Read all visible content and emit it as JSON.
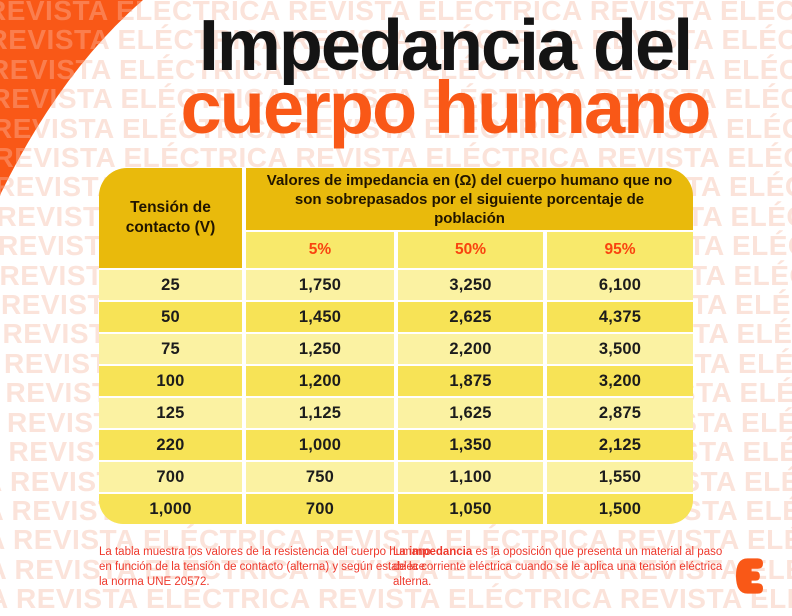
{
  "watermark": {
    "text": "REVISTA ELÉCTRICA",
    "rows": 21,
    "color_on_white": "#fbe3da",
    "color_on_orange": "#fa7e4e"
  },
  "brand": {
    "accent_orange": "#f95817",
    "footnote_red": "#ee392c",
    "gold": "#e9ba0c",
    "yellow_light": "#fbf2a2",
    "yellow_dark": "#f7e356",
    "logo_icon": "e-logo"
  },
  "title": {
    "line1": "Impedancia del",
    "line2": "cuerpo humano"
  },
  "table": {
    "corner_header": "Tensión de contacto (V)",
    "group_header": "Valores de impedancia en (Ω) del cuerpo humano que no son sobrepasados por el siguiente porcentaje de población",
    "percent_headers": [
      "5%",
      "50%",
      "95%"
    ]
  },
  "chart_data": {
    "type": "table",
    "title": "Impedancia del cuerpo humano",
    "columns": [
      "Tensión de contacto (V)",
      "5%",
      "50%",
      "95%"
    ],
    "rows": [
      [
        "25",
        "1,750",
        "3,250",
        "6,100"
      ],
      [
        "50",
        "1,450",
        "2,625",
        "4,375"
      ],
      [
        "75",
        "1,250",
        "2,200",
        "3,500"
      ],
      [
        "100",
        "1,200",
        "1,875",
        "3,200"
      ],
      [
        "125",
        "1,125",
        "1,625",
        "2,875"
      ],
      [
        "220",
        "1,000",
        "1,350",
        "2,125"
      ],
      [
        "700",
        "750",
        "1,100",
        "1,550"
      ],
      [
        "1,000",
        "700",
        "1,050",
        "1,500"
      ]
    ]
  },
  "footnotes": {
    "left": "La tabla muestra los valores de la resistencia del cuerpo humano en función de la tensión de contacto (alterna) y según establece la norma UNE 20572.",
    "right_prefix": "La ",
    "right_bold": "impedancia",
    "right_rest": " es la oposición que presenta un material al paso de la corriente eléctrica cuando se le aplica una tensión eléctrica alterna."
  }
}
